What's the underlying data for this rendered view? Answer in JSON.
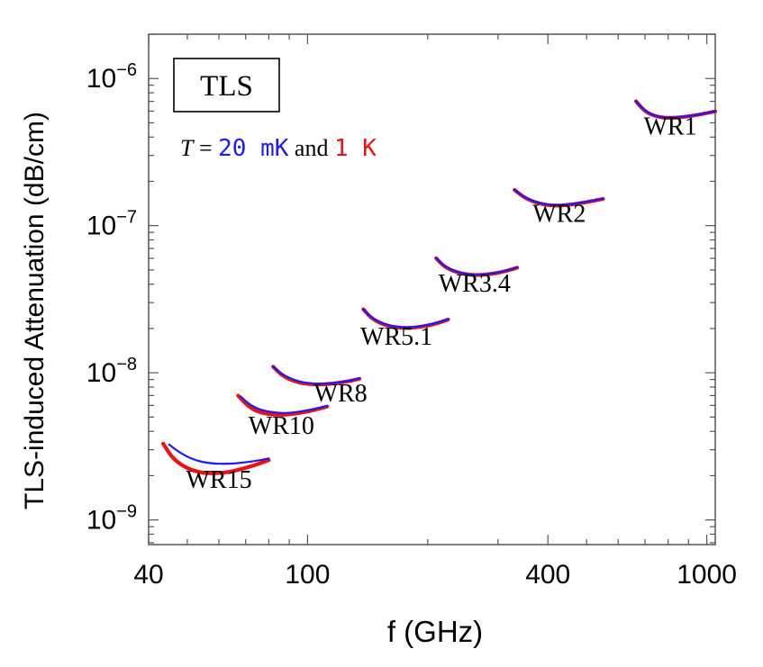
{
  "chart_data": {
    "type": "line",
    "title": "",
    "xlabel": "f (GHz)",
    "ylabel": "TLS-induced Attenuation (dB/cm)",
    "x_scale": "log",
    "y_scale": "log",
    "xlim": [
      40,
      1050
    ],
    "ylim": [
      6.8e-10,
      2e-06
    ],
    "x_ticks": [
      {
        "value": 40,
        "label": "40"
      },
      {
        "value": 100,
        "label": "100"
      },
      {
        "value": 400,
        "label": "400"
      },
      {
        "value": 1000,
        "label": "1000"
      }
    ],
    "y_ticks": [
      {
        "value": 1e-09,
        "base": "10",
        "exp": "−9"
      },
      {
        "value": 1e-08,
        "base": "10",
        "exp": "−8"
      },
      {
        "value": 1e-07,
        "base": "10",
        "exp": "−7"
      },
      {
        "value": 1e-06,
        "base": "10",
        "exp": "−6"
      }
    ],
    "legend_box": "TLS",
    "legend": {
      "prefix": "T",
      "equals": " = ",
      "series1_label": "20 mK",
      "conjunction": " and ",
      "series2_label": "1 K"
    },
    "series": [
      {
        "name": "20 mK",
        "color": "#1a1aff",
        "curves": [
          {
            "band": "WR15",
            "points": [
              [
                45,
                3.25e-09
              ],
              [
                48,
                2.85e-09
              ],
              [
                52,
                2.55e-09
              ],
              [
                57,
                2.42e-09
              ],
              [
                63,
                2.4e-09
              ],
              [
                70,
                2.46e-09
              ],
              [
                77,
                2.56e-09
              ],
              [
                80,
                2.62e-09
              ]
            ]
          },
          {
            "band": "WR10",
            "points": [
              [
                68,
                6.9e-09
              ],
              [
                72,
                6e-09
              ],
              [
                77,
                5.55e-09
              ],
              [
                85,
                5.3e-09
              ],
              [
                93,
                5.38e-09
              ],
              [
                103,
                5.65e-09
              ],
              [
                112,
                5.95e-09
              ]
            ]
          },
          {
            "band": "WR8",
            "points": [
              [
                82,
                1.1e-08
              ],
              [
                87,
                9.6e-09
              ],
              [
                95,
                8.7e-09
              ],
              [
                104,
                8.4e-09
              ],
              [
                115,
                8.45e-09
              ],
              [
                128,
                8.85e-09
              ],
              [
                135,
                9.2e-09
              ]
            ]
          },
          {
            "band": "WR5.1",
            "points": [
              [
                138,
                2.7e-08
              ],
              [
                145,
                2.35e-08
              ],
              [
                158,
                2.1e-08
              ],
              [
                175,
                2.02e-08
              ],
              [
                195,
                2.08e-08
              ],
              [
                213,
                2.2e-08
              ],
              [
                225,
                2.32e-08
              ]
            ]
          },
          {
            "band": "WR3.4",
            "points": [
              [
                210,
                6e-08
              ],
              [
                222,
                5.2e-08
              ],
              [
                242,
                4.75e-08
              ],
              [
                265,
                4.6e-08
              ],
              [
                295,
                4.75e-08
              ],
              [
                320,
                5e-08
              ],
              [
                335,
                5.2e-08
              ]
            ]
          },
          {
            "band": "WR2",
            "points": [
              [
                330,
                1.75e-07
              ],
              [
                350,
                1.55e-07
              ],
              [
                380,
                1.42e-07
              ],
              [
                415,
                1.37e-07
              ],
              [
                460,
                1.4e-07
              ],
              [
                510,
                1.47e-07
              ],
              [
                550,
                1.53e-07
              ]
            ]
          },
          {
            "band": "WR1",
            "points": [
              [
                665,
                7e-07
              ],
              [
                700,
                6e-07
              ],
              [
                750,
                5.5e-07
              ],
              [
                810,
                5.4e-07
              ],
              [
                880,
                5.5e-07
              ],
              [
                960,
                5.7e-07
              ],
              [
                1050,
                6e-07
              ]
            ]
          }
        ]
      },
      {
        "name": "1 K",
        "color": "#ee1111",
        "curves": [
          {
            "band": "WR15",
            "points": [
              [
                43.5,
                3.3e-09
              ],
              [
                46,
                2.6e-09
              ],
              [
                50,
                2.23e-09
              ],
              [
                55,
                2.07e-09
              ],
              [
                62,
                2.08e-09
              ],
              [
                70,
                2.25e-09
              ],
              [
                77,
                2.45e-09
              ],
              [
                80,
                2.55e-09
              ]
            ]
          },
          {
            "band": "WR10",
            "points": [
              [
                67,
                7e-09
              ],
              [
                71,
                5.9e-09
              ],
              [
                76,
                5.35e-09
              ],
              [
                84,
                5.15e-09
              ],
              [
                93,
                5.25e-09
              ],
              [
                103,
                5.55e-09
              ],
              [
                112,
                5.9e-09
              ]
            ]
          },
          {
            "band": "WR8",
            "points": [
              [
                82,
                1.1e-08
              ],
              [
                87,
                9.4e-09
              ],
              [
                95,
                8.55e-09
              ],
              [
                104,
                8.3e-09
              ],
              [
                115,
                8.4e-09
              ],
              [
                128,
                8.8e-09
              ],
              [
                135,
                9.1e-09
              ]
            ]
          },
          {
            "band": "WR5.1",
            "points": [
              [
                138,
                2.7e-08
              ],
              [
                145,
                2.32e-08
              ],
              [
                158,
                2.08e-08
              ],
              [
                175,
                2e-08
              ],
              [
                195,
                2.06e-08
              ],
              [
                213,
                2.18e-08
              ],
              [
                225,
                2.3e-08
              ]
            ]
          },
          {
            "band": "WR3.4",
            "points": [
              [
                210,
                6e-08
              ],
              [
                222,
                5.15e-08
              ],
              [
                242,
                4.72e-08
              ],
              [
                265,
                4.58e-08
              ],
              [
                295,
                4.72e-08
              ],
              [
                320,
                4.98e-08
              ],
              [
                335,
                5.18e-08
              ]
            ]
          },
          {
            "band": "WR2",
            "points": [
              [
                330,
                1.75e-07
              ],
              [
                350,
                1.54e-07
              ],
              [
                380,
                1.41e-07
              ],
              [
                415,
                1.36e-07
              ],
              [
                460,
                1.39e-07
              ],
              [
                510,
                1.46e-07
              ],
              [
                550,
                1.52e-07
              ]
            ]
          },
          {
            "band": "WR1",
            "points": [
              [
                665,
                7e-07
              ],
              [
                700,
                5.95e-07
              ],
              [
                750,
                5.48e-07
              ],
              [
                810,
                5.38e-07
              ],
              [
                880,
                5.48e-07
              ],
              [
                960,
                5.68e-07
              ],
              [
                1050,
                5.98e-07
              ]
            ]
          }
        ]
      }
    ],
    "annotations": [
      {
        "text": "WR15",
        "x": 60,
        "y": 1.65e-09
      },
      {
        "text": "WR10",
        "x": 86,
        "y": 3.85e-09
      },
      {
        "text": "WR8",
        "x": 121,
        "y": 6.4e-09
      },
      {
        "text": "WR5.1",
        "x": 167,
        "y": 1.55e-08
      },
      {
        "text": "WR3.4",
        "x": 262,
        "y": 3.55e-08
      },
      {
        "text": "WR2",
        "x": 427,
        "y": 1.06e-07
      },
      {
        "text": "WR1",
        "x": 810,
        "y": 4.15e-07
      }
    ]
  }
}
